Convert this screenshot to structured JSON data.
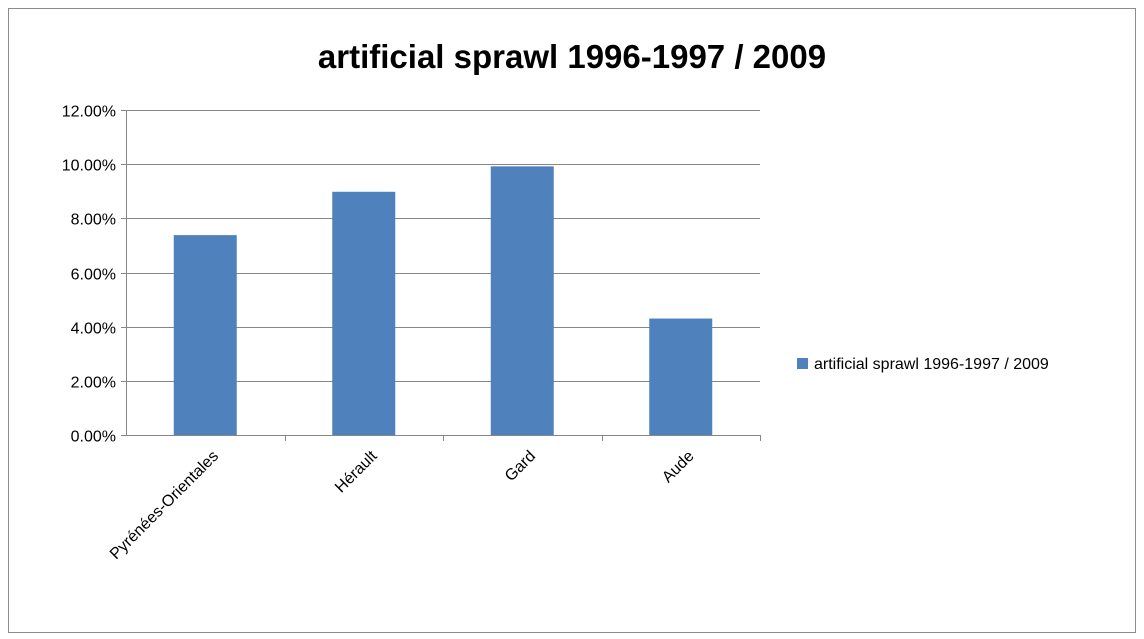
{
  "chart_data": {
    "type": "bar",
    "title": "artificial sprawl 1996-1997  / 2009",
    "categories": [
      "Pyrénées-Orientales",
      "Hérault",
      "Gard",
      "Aude"
    ],
    "series": [
      {
        "name": "artificial sprawl 1996-1997 / 2009",
        "values": [
          0.0738,
          0.0898,
          0.0992,
          0.043
        ],
        "color": "#4f81bd"
      }
    ],
    "ylim": [
      0,
      0.12
    ],
    "y_ticks": [
      0,
      0.02,
      0.04,
      0.06,
      0.08,
      0.1,
      0.12
    ],
    "y_tick_labels": [
      "0.00%",
      "2.00%",
      "4.00%",
      "6.00%",
      "8.00%",
      "10.00%",
      "12.00%"
    ],
    "grid": true,
    "legend_position": "right",
    "xlabel": "",
    "ylabel": ""
  }
}
